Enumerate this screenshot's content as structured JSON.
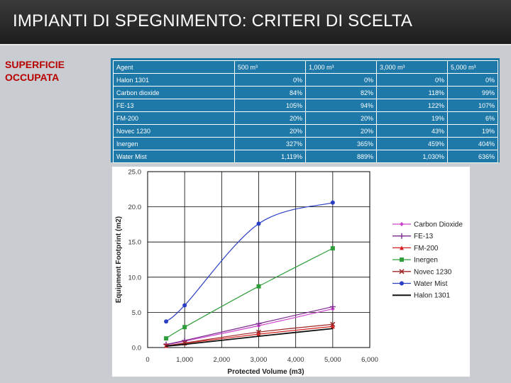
{
  "slide": {
    "title": "IMPIANTI DI SPEGNIMENTO: CRITERI DI SCELTA",
    "side_label_line1": "SUPERFICIE",
    "side_label_line2": "OCCUPATA"
  },
  "table": {
    "headers": [
      "Agent",
      "500 m³",
      "1,000 m³",
      "3,000 m³",
      "5,000 m³"
    ],
    "rows": [
      {
        "agent": "Halon 1301",
        "values": [
          "0%",
          "0%",
          "0%",
          "0%"
        ]
      },
      {
        "agent": "Carbon dioxide",
        "values": [
          "84%",
          "82%",
          "118%",
          "99%"
        ]
      },
      {
        "agent": "FE-13",
        "values": [
          "105%",
          "94%",
          "122%",
          "107%"
        ]
      },
      {
        "agent": "FM-200",
        "values": [
          "20%",
          "20%",
          "19%",
          "6%"
        ]
      },
      {
        "agent": "Novec 1230",
        "values": [
          "20%",
          "20%",
          "43%",
          "19%"
        ]
      },
      {
        "agent": "Inergen",
        "values": [
          "327%",
          "365%",
          "459%",
          "404%"
        ]
      },
      {
        "agent": "Water Mist",
        "values": [
          "1,119%",
          "889%",
          "1,030%",
          "636%"
        ]
      }
    ],
    "colors": {
      "background": "#1e78a8",
      "text": "#ffffff",
      "grid": "#ffffff"
    }
  },
  "chart_data": {
    "type": "line",
    "title": "",
    "xlabel": "Protected Volume (m3)",
    "ylabel": "Equipment Footprint (m2)",
    "xlim": [
      0,
      6000
    ],
    "ylim": [
      0,
      25
    ],
    "grid": true,
    "legend_position": "right",
    "xticks": [
      0,
      1000,
      2000,
      3000,
      4000,
      5000,
      6000
    ],
    "xtick_labels": [
      "0",
      "1,000",
      "2,000",
      "3,000",
      "4,000",
      "5,000",
      "6,000"
    ],
    "yticks": [
      0,
      5,
      10,
      15,
      20,
      25
    ],
    "ytick_labels": [
      "0.0",
      "5.0",
      "10.0",
      "15.0",
      "20.0",
      "25.0"
    ],
    "x": [
      500,
      1000,
      3000,
      5000
    ],
    "series": [
      {
        "name": "Carbon Dioxide",
        "values": [
          0.4,
          0.9,
          3.1,
          5.5
        ],
        "color": "#cc44cc",
        "marker": "diamond"
      },
      {
        "name": "FE-13",
        "values": [
          0.45,
          1.0,
          3.4,
          5.8
        ],
        "color": "#7a2c8c",
        "marker": "plus"
      },
      {
        "name": "FM-200",
        "values": [
          0.25,
          0.6,
          1.9,
          3.0
        ],
        "color": "#d42020",
        "marker": "triangle"
      },
      {
        "name": "Inergen",
        "values": [
          1.3,
          2.9,
          8.7,
          14.1
        ],
        "color": "#2e9e3a",
        "marker": "square"
      },
      {
        "name": "Novec 1230",
        "values": [
          0.25,
          0.65,
          2.2,
          3.3
        ],
        "color": "#a02828",
        "marker": "x"
      },
      {
        "name": "Water Mist",
        "values": [
          3.7,
          6.0,
          17.6,
          20.6
        ],
        "color": "#2a3fc4",
        "marker": "circle"
      },
      {
        "name": "Halon 1301",
        "values": [
          0.2,
          0.45,
          1.6,
          2.7
        ],
        "color": "#111111",
        "marker": "none"
      }
    ]
  }
}
